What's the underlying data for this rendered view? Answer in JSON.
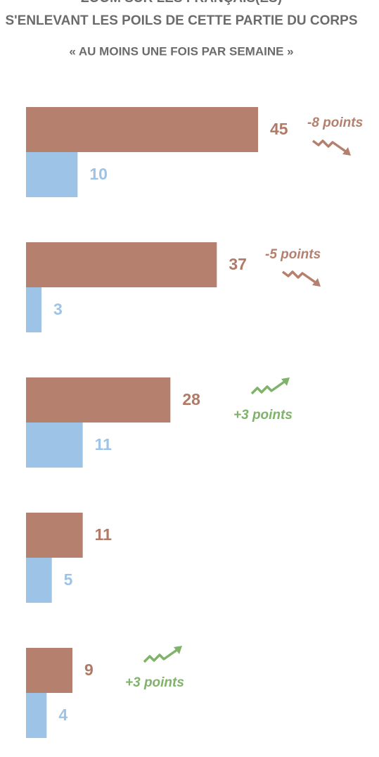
{
  "chart_data": {
    "type": "bar",
    "orientation": "horizontal",
    "title": "ZOOM SUR LES FRANÇAIS(ES) S'ENLEVANT LES POILS DE CETTE PARTIE DU CORPS",
    "subtitle": "« AU MOINS UNE FOIS PAR SEMAINE »",
    "categories": [
      null,
      null,
      null,
      null,
      null
    ],
    "series": [
      {
        "color": "#b5806e",
        "values": [
          45,
          37,
          28,
          11,
          9
        ]
      },
      {
        "color": "#9dc3e6",
        "values": [
          10,
          3,
          11,
          5,
          4
        ]
      }
    ],
    "annotations": [
      "-8 points",
      "-5 points",
      "+3 points",
      null,
      "+3 points"
    ],
    "annotation_colors": [
      "#b5806e",
      "#b5806e",
      "#7fb36a",
      null,
      "#7fb36a"
    ]
  }
}
